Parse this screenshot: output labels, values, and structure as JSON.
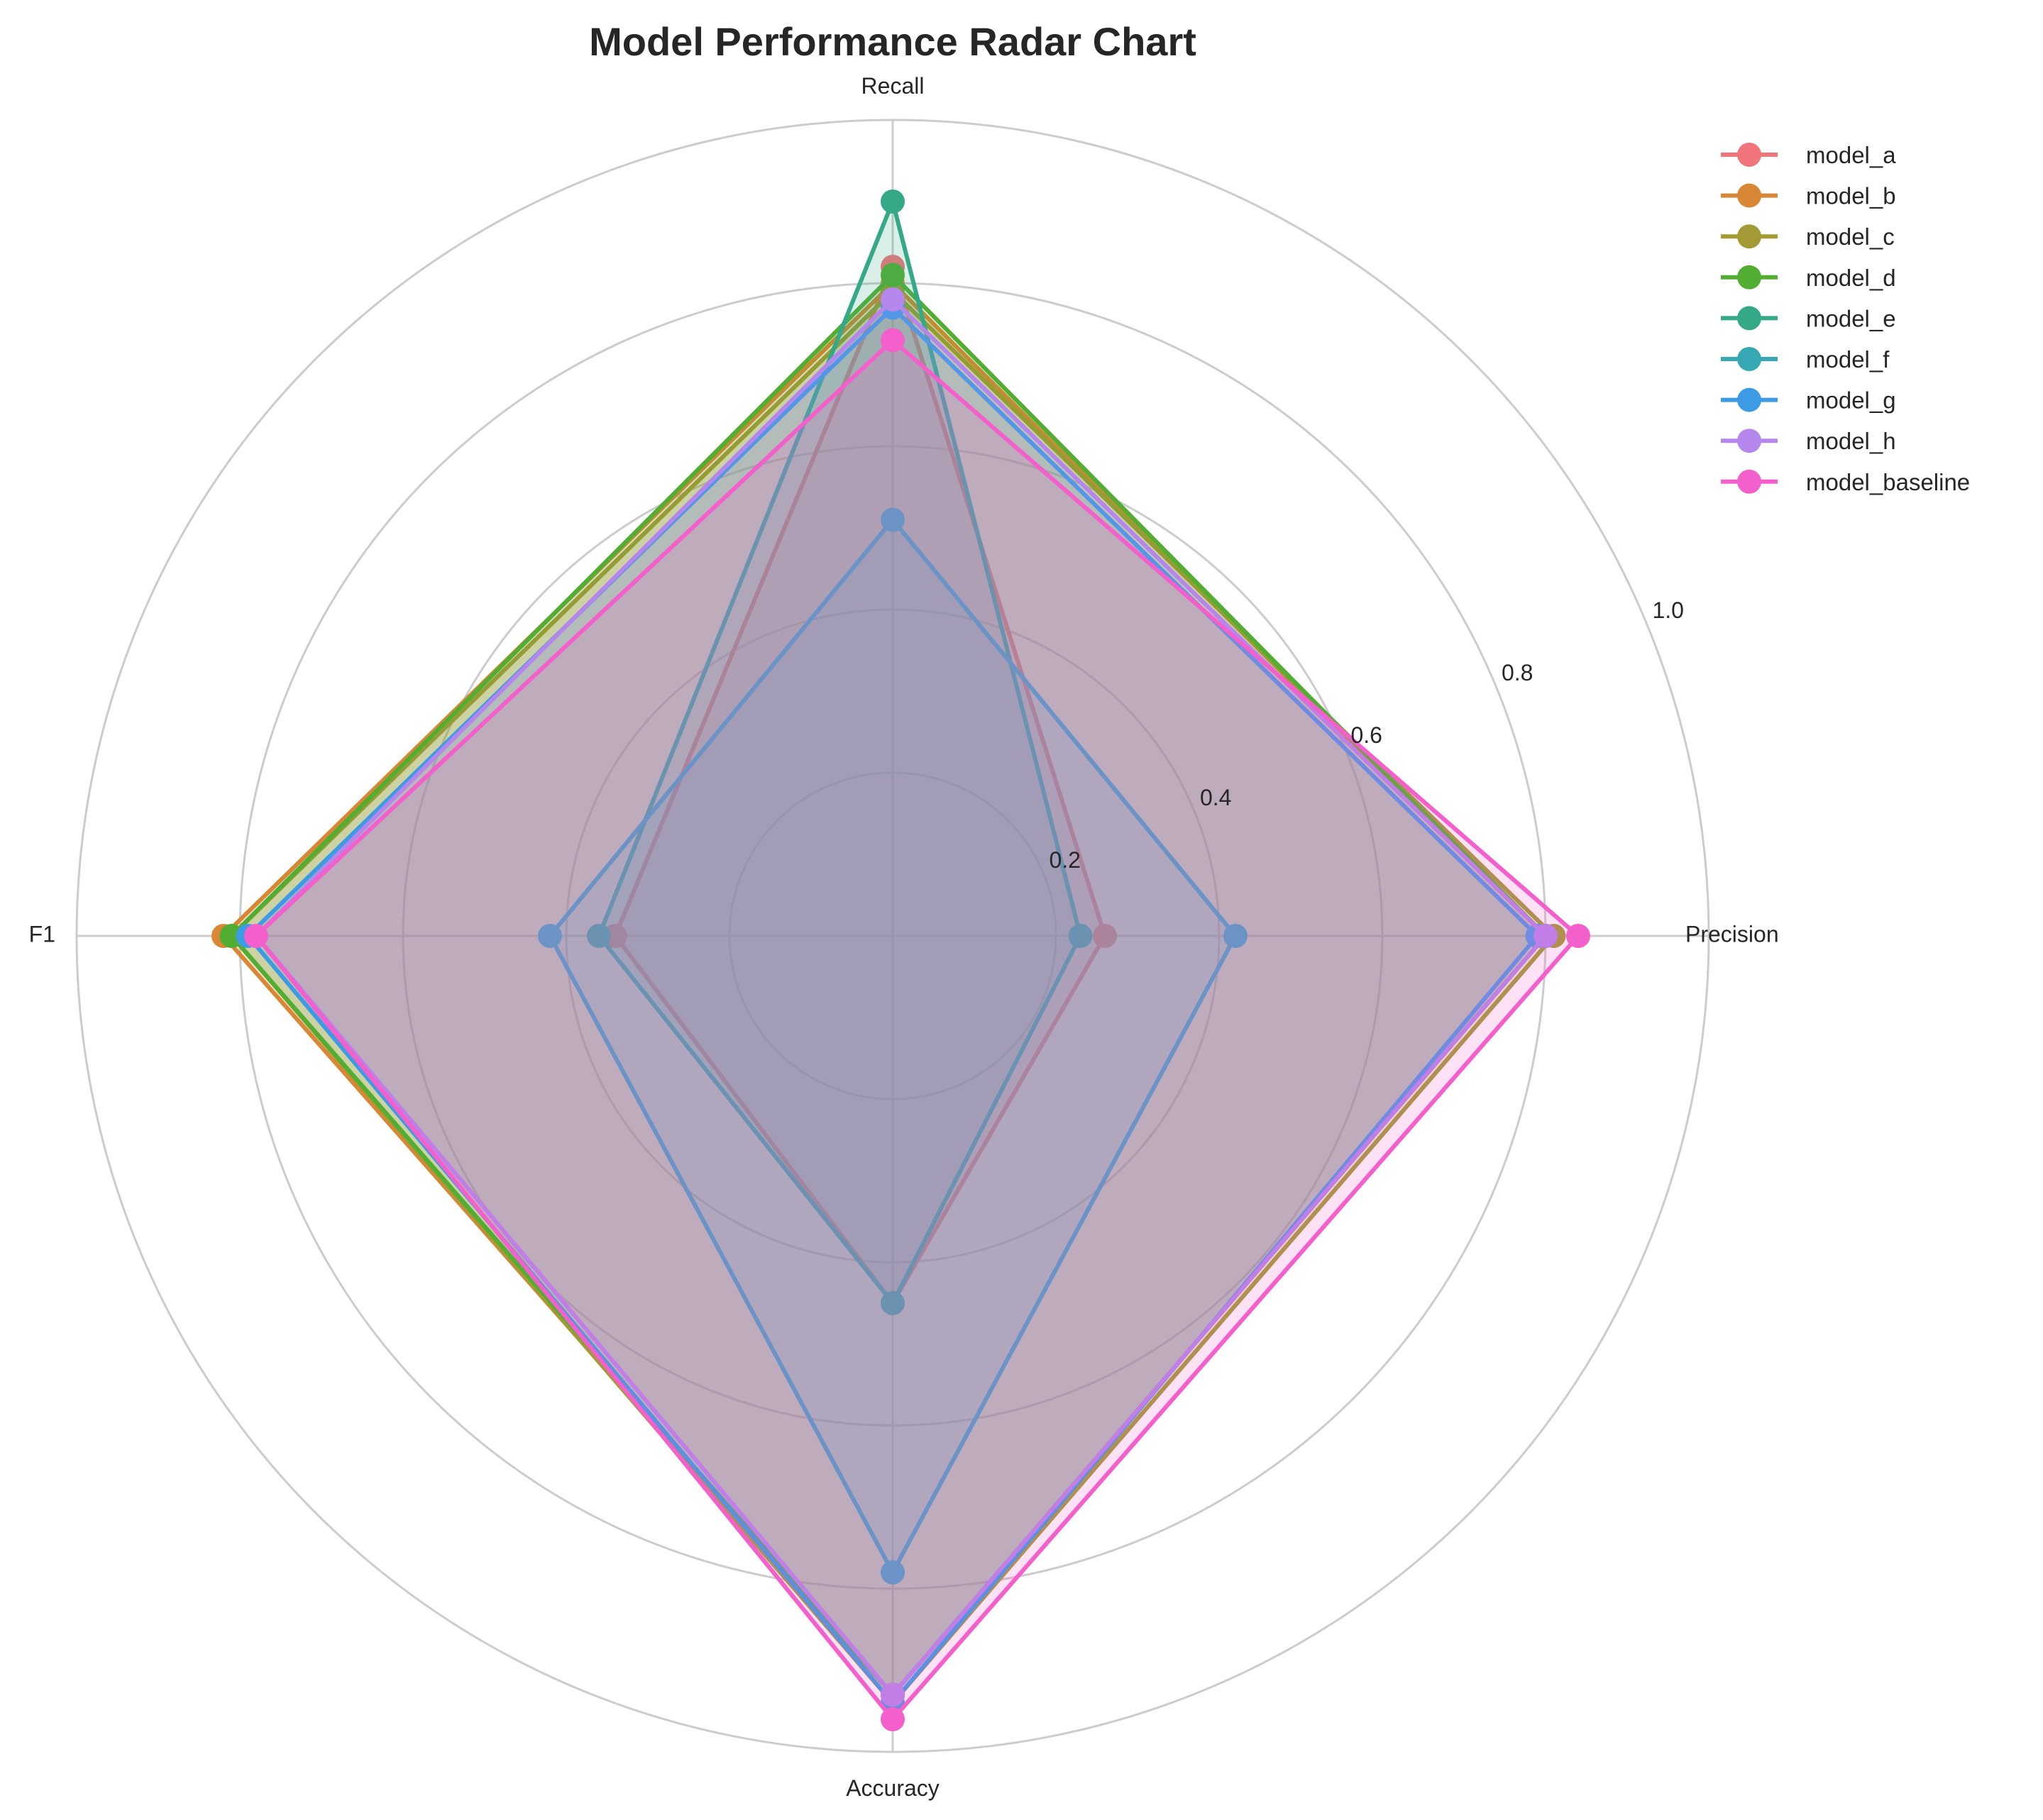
{
  "chart_data": {
    "type": "radar",
    "title": "Model Performance Radar Chart",
    "axes": [
      "Precision",
      "Recall",
      "F1",
      "Accuracy"
    ],
    "rlim": [
      0,
      1.0
    ],
    "rticks": [
      0.2,
      0.4,
      0.6,
      0.8,
      1.0
    ],
    "rtick_labels": [
      "0.2",
      "0.4",
      "0.6",
      "0.8",
      "1.0"
    ],
    "grid": true,
    "legend_position": "upper-right-outside",
    "series": [
      {
        "name": "model_a",
        "color": "#f0747a",
        "values": [
          0.26,
          0.82,
          0.34,
          0.45
        ]
      },
      {
        "name": "model_b",
        "color": "#d88734",
        "values": [
          0.8,
          0.8,
          0.82,
          0.93
        ]
      },
      {
        "name": "model_c",
        "color": "#a39a35",
        "values": [
          0.81,
          0.79,
          0.81,
          0.94
        ]
      },
      {
        "name": "model_d",
        "color": "#52ae32",
        "values": [
          0.8,
          0.81,
          0.81,
          0.93
        ]
      },
      {
        "name": "model_e",
        "color": "#35a887",
        "values": [
          0.23,
          0.9,
          0.36,
          0.45
        ]
      },
      {
        "name": "model_f",
        "color": "#36a8b4",
        "values": [
          0.42,
          0.51,
          0.42,
          0.78
        ]
      },
      {
        "name": "model_g",
        "color": "#3d9be6",
        "values": [
          0.79,
          0.77,
          0.79,
          0.94
        ]
      },
      {
        "name": "model_h",
        "color": "#b586ec",
        "values": [
          0.8,
          0.78,
          0.78,
          0.93
        ]
      },
      {
        "name": "model_baseline",
        "color": "#f35fcb",
        "values": [
          0.84,
          0.73,
          0.78,
          0.96
        ]
      }
    ]
  }
}
